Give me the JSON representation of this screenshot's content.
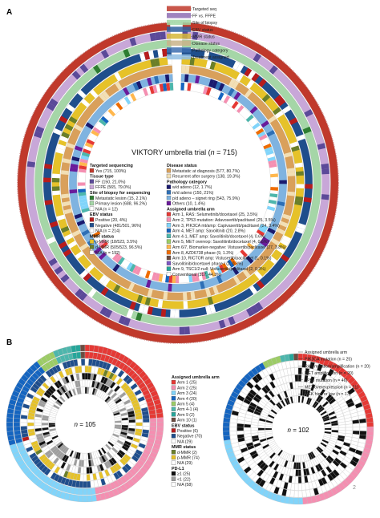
{
  "panel_a": {
    "letter": "A",
    "title_main": "VIKTORY umbrella trial (",
    "title_n": "n",
    "title_tail": " = 715)",
    "ring_labels": [
      {
        "text": "Targeted seq",
        "color": "#c0392b"
      },
      {
        "text": "FF vs. FFPE",
        "color": "#8e6db3"
      },
      {
        "text": "Site of biopsy",
        "color": "#9fd7a3"
      },
      {
        "text": "EBV status",
        "color": "#2f5f9e"
      },
      {
        "text": "MMR status",
        "color": "#d6b73a"
      },
      {
        "text": "Disease status",
        "color": "#c9b38a"
      },
      {
        "text": "Pathology category",
        "color": "#3d6fb0"
      },
      {
        "text": "Treatment assigned",
        "color": "#8fbde3"
      }
    ],
    "legend_left": [
      {
        "kind": "heading",
        "text": "Targeted sequencing"
      },
      {
        "kind": "item",
        "text": "Yes (715, 100%)",
        "color": "#c0392b"
      },
      {
        "kind": "heading",
        "text": "Tissue type"
      },
      {
        "kind": "item",
        "text": "FF (150, 21.0%)",
        "color": "#5b4a99"
      },
      {
        "kind": "item",
        "text": "FFPE (565, 79.0%)",
        "color": "#c8a7d8"
      },
      {
        "kind": "heading",
        "text": "Site of biopsy for sequencing"
      },
      {
        "kind": "item",
        "text": "Metastatic lesion (15, 2.1%)",
        "color": "#2e7d32"
      },
      {
        "kind": "item",
        "text": "Primary lesion (688, 96.2%)",
        "color": "#a5d6a7"
      },
      {
        "kind": "item",
        "text": "N/A (n = 12)",
        "color": "#ffffff"
      },
      {
        "kind": "heading",
        "text": "EBV status"
      },
      {
        "kind": "item",
        "text": "Positive (20, 4%)",
        "color": "#b71c1c"
      },
      {
        "kind": "item",
        "text": "Negative (481/501, 96%)",
        "color": "#1f4e8c"
      },
      {
        "kind": "item",
        "text": "N/A (n = 214)",
        "color": "#ffffff"
      },
      {
        "kind": "heading",
        "text": "MMR status"
      },
      {
        "kind": "item",
        "text": "p-MMR (18/523, 3.5%)",
        "color": "#e6c229"
      },
      {
        "kind": "item",
        "text": "d-MMR (505/523, 96.5%)",
        "color": "#6a7f2a"
      },
      {
        "kind": "item",
        "text": "N/A (n = 192)",
        "color": "#ffffff"
      }
    ],
    "legend_right": [
      {
        "kind": "heading",
        "text": "Disease status"
      },
      {
        "kind": "item",
        "text": "Metastatic at diagnosis (577, 80.7%)",
        "color": "#d9a05b"
      },
      {
        "kind": "item",
        "text": "Recurrent after surgery (138, 19.3%)",
        "color": "#f2dfb5"
      },
      {
        "kind": "heading",
        "text": "Pathology category"
      },
      {
        "kind": "item",
        "text": "w/d adeno (12, 1.7%)",
        "color": "#1a1a6e"
      },
      {
        "kind": "item",
        "text": "m/d adeno (150, 21%)",
        "color": "#2e6fb5"
      },
      {
        "kind": "item",
        "text": "p/d adeno – signet ring (543, 75.9%)",
        "color": "#7fb3e0"
      },
      {
        "kind": "item",
        "text": "Others (10, 1.4%)",
        "color": "#6a1b9a"
      },
      {
        "kind": "heading",
        "text": "Assigned umbrella arm"
      },
      {
        "kind": "item",
        "text": "Arm 1, RAS: Selumetinib/docetaxel (25, 3.5%)",
        "color": "#e53935"
      },
      {
        "kind": "item",
        "text": "Arm 2, TP53 mutation: Adavosertib/paclitaxel (25, 3.5%)",
        "color": "#f48fb1"
      },
      {
        "kind": "item",
        "text": "Arm 3, PIK3CA mt/amp: Capivasertib/paclitaxel (24, 3.4%)",
        "color": "#81d4fa"
      },
      {
        "kind": "item",
        "text": "Arm 4, MET amp: Savolitinib (20, 2.8%)",
        "color": "#1565c0"
      },
      {
        "kind": "item",
        "text": "Arm 4-1, MET amp: Savolitinib/docetaxel (4, 0.6%)",
        "color": "#4db6ac"
      },
      {
        "kind": "item",
        "text": "Arm 5, MET overexp: Savolitinib/docetaxel (4, 0.6%)",
        "color": "#9ccc65"
      },
      {
        "kind": "item",
        "text": "Arm 6/7, Biomarker-negative: Vistusertib/paclitaxel (27, 3.8%)",
        "color": "#ffb74d"
      },
      {
        "kind": "item",
        "text": "Arm 8, AZD6738 phase (9, 1.3%)",
        "color": "#ef6c00"
      },
      {
        "kind": "item",
        "text": "Arm 10, RICTOR amp: Vistusertib/paclitaxel (1, 0.1%)",
        "color": "#6d4c41"
      },
      {
        "kind": "item",
        "text": "Savolitinib/docetaxel phase I (2, 0.3%)",
        "color": "#7e57c2"
      },
      {
        "kind": "item",
        "text": "Arm 9, TSC1/2-null: Vistusertib/paclitaxel (2, 0.3%)",
        "color": "#26a69a"
      },
      {
        "kind": "item",
        "text": "Conventional (317, 44.3%)",
        "color": "#ffffff"
      }
    ]
  },
  "panel_b": {
    "letter": "B",
    "left_n_label": "n",
    "left_n_value": " = 105",
    "right_n_label": "n",
    "right_n_value": " = 102",
    "legend": [
      {
        "kind": "heading",
        "text": "Assigned umbrella arm"
      },
      {
        "kind": "item",
        "text": "Arm 1 (25)",
        "color": "#e53935"
      },
      {
        "kind": "item",
        "text": "Arm 2 (25)",
        "color": "#f48fb1"
      },
      {
        "kind": "item",
        "text": "Arm 3 (24)",
        "color": "#81d4fa"
      },
      {
        "kind": "item",
        "text": "Arm 4 (20)",
        "color": "#1565c0"
      },
      {
        "kind": "item",
        "text": "Arm 5 (4)",
        "color": "#9ccc65"
      },
      {
        "kind": "item",
        "text": "Arm 4-1 (4)",
        "color": "#4db6ac"
      },
      {
        "kind": "item",
        "text": "Arm 9 (2)",
        "color": "#26a69a"
      },
      {
        "kind": "item",
        "text": "Arm 10 (1)",
        "color": "#6d4c41"
      },
      {
        "kind": "heading",
        "text": "EBV status"
      },
      {
        "kind": "item",
        "text": "Positive (6)",
        "color": "#b71c1c"
      },
      {
        "kind": "item",
        "text": "Negative (70)",
        "color": "#1f4e8c"
      },
      {
        "kind": "item",
        "text": "N/A (29)",
        "color": "#ffffff"
      },
      {
        "kind": "heading",
        "text": "MMR status"
      },
      {
        "kind": "item",
        "text": "d-MMR (2)",
        "color": "#6a7f2a"
      },
      {
        "kind": "item",
        "text": "p-MMR (74)",
        "color": "#e6c229"
      },
      {
        "kind": "item",
        "text": "N/A (29)",
        "color": "#ffffff"
      },
      {
        "kind": "heading",
        "text": "PD-L1"
      },
      {
        "kind": "item",
        "text": "≥1 (25)",
        "color": "#111111"
      },
      {
        "kind": "item",
        "text": "<1 (22)",
        "color": "#9e9e9e"
      },
      {
        "kind": "item",
        "text": "N/A (58)",
        "color": "#ffffff"
      }
    ],
    "right_ring_labels": [
      "Assigned umbrella arm",
      "PIK3CA mutation (n = 25)",
      "RAS mutation/amplification (n = 20)",
      "MET amplification (n = 20)",
      "TP53 mutation (n = 46)",
      "MET overexpression (n = 21)",
      "MEK high or low (n = 17)"
    ],
    "page_number": "2"
  }
}
